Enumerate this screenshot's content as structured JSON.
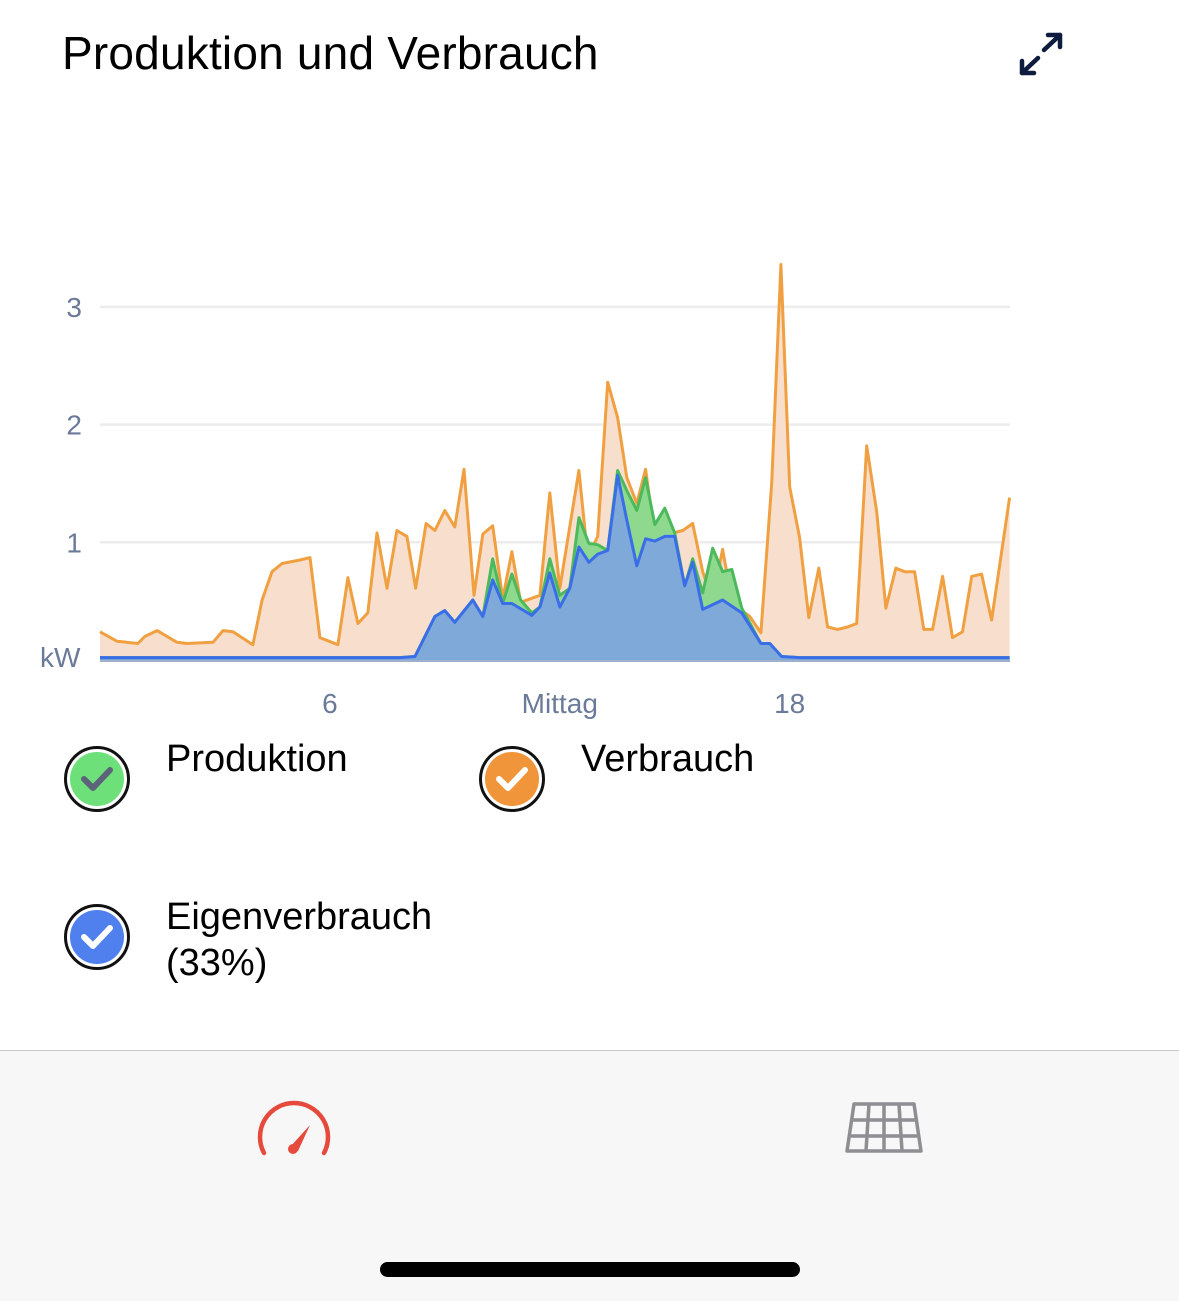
{
  "header": {
    "title": "Produktion und Verbrauch",
    "expand_icon": "expand-arrows-icon"
  },
  "legend": [
    {
      "label": "Produktion",
      "color": "#6ee07a",
      "check_color": "#5b6478"
    },
    {
      "label": "Verbrauch",
      "color": "#f0953a",
      "check_color": "#ffffff"
    },
    {
      "label_line1": "Eigenverbrauch",
      "label_line2": "(33%)",
      "color": "#4f80ee",
      "check_color": "#ffffff"
    }
  ],
  "tabbar": {
    "tabs": [
      {
        "icon": "speedometer-icon",
        "color": "#e64a3c"
      },
      {
        "icon": "solar-panel-icon",
        "color": "#8e8e93"
      }
    ]
  },
  "chart_data": {
    "type": "area",
    "title": "Produktion und Verbrauch",
    "ylabel": "kW",
    "xlabel": "",
    "xlim": [
      0,
      23.75
    ],
    "ylim": [
      0,
      3.4
    ],
    "grid": true,
    "y_ticks": [
      {
        "v": 1,
        "label": "1"
      },
      {
        "v": 2,
        "label": "2"
      },
      {
        "v": 3,
        "label": "3"
      }
    ],
    "x_ticks": [
      {
        "h": 6,
        "label": "6"
      },
      {
        "h": 12,
        "label": "Mittag"
      },
      {
        "h": 18,
        "label": "18"
      }
    ],
    "series": [
      {
        "name": "Verbrauch",
        "stroke": "#f0a040",
        "fill": "#f8dfcd",
        "points": [
          [
            0,
            0.24
          ],
          [
            0.44,
            0.16
          ],
          [
            0.7,
            0.15
          ],
          [
            0.99,
            0.14
          ],
          [
            1.17,
            0.2
          ],
          [
            1.49,
            0.25
          ],
          [
            2.01,
            0.15
          ],
          [
            2.27,
            0.14
          ],
          [
            2.95,
            0.15
          ],
          [
            3.21,
            0.25
          ],
          [
            3.47,
            0.24
          ],
          [
            3.99,
            0.13
          ],
          [
            4.23,
            0.51
          ],
          [
            4.49,
            0.75
          ],
          [
            4.75,
            0.82
          ],
          [
            5.22,
            0.85
          ],
          [
            5.48,
            0.87
          ],
          [
            5.74,
            0.19
          ],
          [
            6.21,
            0.13
          ],
          [
            6.47,
            0.7
          ],
          [
            6.73,
            0.31
          ],
          [
            6.99,
            0.4
          ],
          [
            7.23,
            1.08
          ],
          [
            7.49,
            0.61
          ],
          [
            7.75,
            1.1
          ],
          [
            8.01,
            1.05
          ],
          [
            8.24,
            0.61
          ],
          [
            8.51,
            1.16
          ],
          [
            8.74,
            1.1
          ],
          [
            9.0,
            1.27
          ],
          [
            9.26,
            1.13
          ],
          [
            9.5,
            1.62
          ],
          [
            9.76,
            0.55
          ],
          [
            9.99,
            1.07
          ],
          [
            10.25,
            1.14
          ],
          [
            10.51,
            0.52
          ],
          [
            10.75,
            0.92
          ],
          [
            10.98,
            0.49
          ],
          [
            11.48,
            0.55
          ],
          [
            11.74,
            1.42
          ],
          [
            12.0,
            0.61
          ],
          [
            12.5,
            1.61
          ],
          [
            12.73,
            0.87
          ],
          [
            12.99,
            1.05
          ],
          [
            13.25,
            2.36
          ],
          [
            13.51,
            2.06
          ],
          [
            13.75,
            1.55
          ],
          [
            14.01,
            1.33
          ],
          [
            14.24,
            1.62
          ],
          [
            14.48,
            1.05
          ],
          [
            14.84,
            1.07
          ],
          [
            15.21,
            1.1
          ],
          [
            15.47,
            1.16
          ],
          [
            15.73,
            0.75
          ],
          [
            15.99,
            0.51
          ],
          [
            16.25,
            0.94
          ],
          [
            16.49,
            0.51
          ],
          [
            16.75,
            0.42
          ],
          [
            16.96,
            0.37
          ],
          [
            17.25,
            0.23
          ],
          [
            17.53,
            1.5
          ],
          [
            17.77,
            3.36
          ],
          [
            18.0,
            1.47
          ],
          [
            18.26,
            1.04
          ],
          [
            18.5,
            0.36
          ],
          [
            18.76,
            0.78
          ],
          [
            18.99,
            0.28
          ],
          [
            19.25,
            0.26
          ],
          [
            19.51,
            0.28
          ],
          [
            19.75,
            0.31
          ],
          [
            20.01,
            1.82
          ],
          [
            20.27,
            1.26
          ],
          [
            20.51,
            0.44
          ],
          [
            20.77,
            0.78
          ],
          [
            21.0,
            0.75
          ],
          [
            21.26,
            0.75
          ],
          [
            21.5,
            0.26
          ],
          [
            21.73,
            0.26
          ],
          [
            21.99,
            0.71
          ],
          [
            22.25,
            0.19
          ],
          [
            22.51,
            0.24
          ],
          [
            22.75,
            0.71
          ],
          [
            23.01,
            0.73
          ],
          [
            23.27,
            0.34
          ],
          [
            23.74,
            1.38
          ]
        ]
      },
      {
        "name": "Produktion",
        "stroke": "#4cba5c",
        "fill": "#8fd98f",
        "points": [
          [
            0,
            0.02
          ],
          [
            7.83,
            0.02
          ],
          [
            8.22,
            0.03
          ],
          [
            8.74,
            0.37
          ],
          [
            9.0,
            0.42
          ],
          [
            9.26,
            0.32
          ],
          [
            9.73,
            0.51
          ],
          [
            9.99,
            0.37
          ],
          [
            10.25,
            0.86
          ],
          [
            10.51,
            0.48
          ],
          [
            10.75,
            0.73
          ],
          [
            10.98,
            0.51
          ],
          [
            11.27,
            0.4
          ],
          [
            11.48,
            0.45
          ],
          [
            11.74,
            0.86
          ],
          [
            12.0,
            0.55
          ],
          [
            12.26,
            0.61
          ],
          [
            12.5,
            1.21
          ],
          [
            12.76,
            0.99
          ],
          [
            12.99,
            0.98
          ],
          [
            13.25,
            0.93
          ],
          [
            13.51,
            1.61
          ],
          [
            13.75,
            1.44
          ],
          [
            14.01,
            1.27
          ],
          [
            14.24,
            1.55
          ],
          [
            14.48,
            1.15
          ],
          [
            14.74,
            1.29
          ],
          [
            15.0,
            1.08
          ],
          [
            15.26,
            0.63
          ],
          [
            15.47,
            0.86
          ],
          [
            15.73,
            0.57
          ],
          [
            15.99,
            0.95
          ],
          [
            16.25,
            0.75
          ],
          [
            16.49,
            0.77
          ],
          [
            16.75,
            0.44
          ],
          [
            17.25,
            0.14
          ],
          [
            17.48,
            0.14
          ],
          [
            17.79,
            0.03
          ],
          [
            18.26,
            0.02
          ],
          [
            23.74,
            0.02
          ]
        ]
      },
      {
        "name": "Eigenverbrauch",
        "stroke": "#3a6ee8",
        "fill": "#7ea9d8",
        "points": [
          [
            0,
            0.02
          ],
          [
            7.83,
            0.02
          ],
          [
            8.22,
            0.03
          ],
          [
            8.74,
            0.37
          ],
          [
            9.0,
            0.42
          ],
          [
            9.26,
            0.32
          ],
          [
            9.73,
            0.51
          ],
          [
            9.99,
            0.37
          ],
          [
            10.25,
            0.68
          ],
          [
            10.51,
            0.48
          ],
          [
            10.75,
            0.48
          ],
          [
            11.27,
            0.38
          ],
          [
            11.48,
            0.45
          ],
          [
            11.74,
            0.74
          ],
          [
            12.0,
            0.45
          ],
          [
            12.26,
            0.61
          ],
          [
            12.5,
            0.96
          ],
          [
            12.76,
            0.83
          ],
          [
            12.99,
            0.9
          ],
          [
            13.25,
            0.93
          ],
          [
            13.51,
            1.57
          ],
          [
            13.75,
            1.19
          ],
          [
            14.01,
            0.8
          ],
          [
            14.24,
            1.03
          ],
          [
            14.48,
            1.01
          ],
          [
            14.74,
            1.05
          ],
          [
            15.0,
            1.05
          ],
          [
            15.26,
            0.63
          ],
          [
            15.47,
            0.83
          ],
          [
            15.73,
            0.43
          ],
          [
            16.25,
            0.51
          ],
          [
            16.75,
            0.4
          ],
          [
            17.25,
            0.14
          ],
          [
            17.48,
            0.14
          ],
          [
            17.79,
            0.03
          ],
          [
            18.26,
            0.02
          ],
          [
            23.74,
            0.02
          ]
        ]
      }
    ]
  }
}
